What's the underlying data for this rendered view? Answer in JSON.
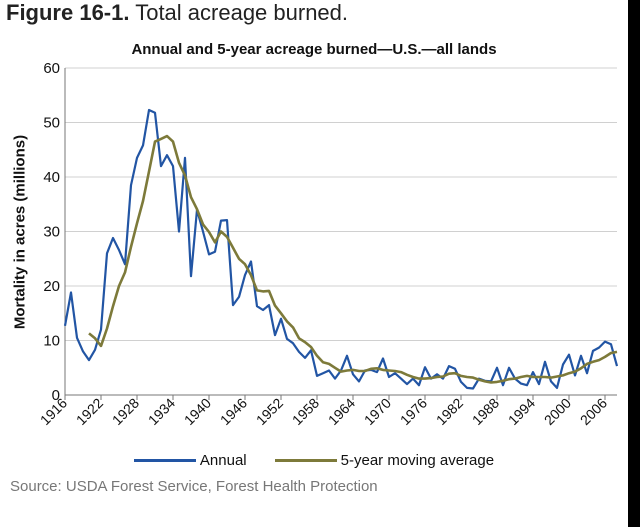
{
  "figure": {
    "label": "Figure 16-1.",
    "title": "Total acreage burned.",
    "source": "Source: USDA Forest Service, Forest Health Protection"
  },
  "colors": {
    "annual": "#2255a4",
    "average": "#7d7a3a",
    "grid": "#d0d0d0"
  },
  "chart_data": {
    "type": "line",
    "title": "Annual and 5-year acreage burned—U.S.—all lands",
    "xlabel": "",
    "ylabel": "Mortality in acres (millions)",
    "ylim": [
      0,
      60
    ],
    "yticks": [
      0,
      10,
      20,
      30,
      40,
      50,
      60
    ],
    "xlim": [
      1916,
      2008
    ],
    "xticks": [
      1916,
      1922,
      1928,
      1934,
      1940,
      1946,
      1952,
      1958,
      1964,
      1970,
      1976,
      1982,
      1988,
      1994,
      2000,
      2006
    ],
    "grid": "horizontal",
    "legend_position": "bottom",
    "series": [
      {
        "name": "Annual",
        "x": [
          1916,
          1917,
          1918,
          1919,
          1920,
          1921,
          1922,
          1923,
          1924,
          1925,
          1926,
          1927,
          1928,
          1929,
          1930,
          1931,
          1932,
          1933,
          1934,
          1935,
          1936,
          1937,
          1938,
          1939,
          1940,
          1941,
          1942,
          1943,
          1944,
          1945,
          1946,
          1947,
          1948,
          1949,
          1950,
          1951,
          1952,
          1953,
          1954,
          1955,
          1956,
          1957,
          1958,
          1959,
          1960,
          1961,
          1962,
          1963,
          1964,
          1965,
          1966,
          1967,
          1968,
          1969,
          1970,
          1971,
          1972,
          1973,
          1974,
          1975,
          1976,
          1977,
          1978,
          1979,
          1980,
          1981,
          1982,
          1983,
          1984,
          1985,
          1986,
          1987,
          1988,
          1989,
          1990,
          1991,
          1992,
          1993,
          1994,
          1995,
          1996,
          1997,
          1998,
          1999,
          2000,
          2001,
          2002,
          2003,
          2004,
          2005,
          2006,
          2007,
          2008
        ],
        "values": [
          12.7,
          18.8,
          10.5,
          8.0,
          6.4,
          8.3,
          12.0,
          26.0,
          28.8,
          26.6,
          24.0,
          38.5,
          43.5,
          45.8,
          52.3,
          51.8,
          42.0,
          44.0,
          42.0,
          30.0,
          43.5,
          21.8,
          34.0,
          30.0,
          25.8,
          26.3,
          32.0,
          32.1,
          16.5,
          18.0,
          22.0,
          24.5,
          16.3,
          15.6,
          16.5,
          11.0,
          14.0,
          10.3,
          9.5,
          7.9,
          6.8,
          8.2,
          3.5,
          4.0,
          4.5,
          3.0,
          4.5,
          7.2,
          3.8,
          2.5,
          4.5,
          4.6,
          4.2,
          6.7,
          3.3,
          4.0,
          3.0,
          2.0,
          3.0,
          1.8,
          5.1,
          3.0,
          3.8,
          3.0,
          5.3,
          4.8,
          2.4,
          1.3,
          1.2,
          3.0,
          2.6,
          2.5,
          5.0,
          1.8,
          5.0,
          3.0,
          2.1,
          1.8,
          4.2,
          2.0,
          6.1,
          2.5,
          1.3,
          5.6,
          7.4,
          3.6,
          7.2,
          4.0,
          8.1,
          8.7,
          9.8,
          9.3,
          5.3
        ]
      },
      {
        "name": "5-year moving average",
        "x": [
          1920,
          1921,
          1922,
          1923,
          1924,
          1925,
          1926,
          1927,
          1928,
          1929,
          1930,
          1931,
          1932,
          1933,
          1934,
          1935,
          1936,
          1937,
          1938,
          1939,
          1940,
          1941,
          1942,
          1943,
          1944,
          1945,
          1946,
          1947,
          1948,
          1949,
          1950,
          1951,
          1952,
          1953,
          1954,
          1955,
          1956,
          1957,
          1958,
          1959,
          1960,
          1961,
          1962,
          1963,
          1964,
          1965,
          1966,
          1967,
          1968,
          1969,
          1970,
          1971,
          1972,
          1973,
          1974,
          1975,
          1976,
          1977,
          1978,
          1979,
          1980,
          1981,
          1982,
          1983,
          1984,
          1985,
          1986,
          1987,
          1988,
          1989,
          1990,
          1991,
          1992,
          1993,
          1994,
          1995,
          1996,
          1997,
          1998,
          1999,
          2000,
          2001,
          2002,
          2003,
          2004,
          2005,
          2006,
          2007,
          2008
        ],
        "values": [
          11.3,
          10.4,
          9.0,
          12.2,
          16.3,
          20.0,
          22.5,
          27.2,
          31.5,
          35.6,
          41.0,
          46.5,
          47.0,
          47.5,
          46.5,
          42.6,
          40.3,
          36.3,
          34.1,
          31.3,
          29.9,
          28.0,
          30.0,
          29.0,
          27.0,
          25.0,
          24.0,
          22.0,
          19.2,
          19.0,
          19.1,
          16.4,
          15.0,
          13.5,
          12.4,
          10.4,
          9.7,
          8.8,
          7.2,
          6.0,
          5.7,
          5.0,
          4.3,
          4.5,
          4.6,
          4.4,
          4.4,
          4.8,
          4.9,
          4.6,
          4.5,
          4.4,
          4.2,
          3.7,
          3.3,
          3.0,
          3.0,
          3.1,
          3.3,
          3.4,
          3.9,
          4.0,
          3.5,
          3.3,
          3.2,
          2.8,
          2.5,
          2.3,
          2.4,
          2.6,
          2.9,
          3.0,
          3.3,
          3.5,
          3.3,
          3.3,
          3.3,
          3.2,
          3.4,
          3.6,
          4.0,
          4.3,
          4.9,
          5.7,
          6.1,
          6.4,
          7.0,
          7.7,
          7.9
        ]
      }
    ]
  }
}
